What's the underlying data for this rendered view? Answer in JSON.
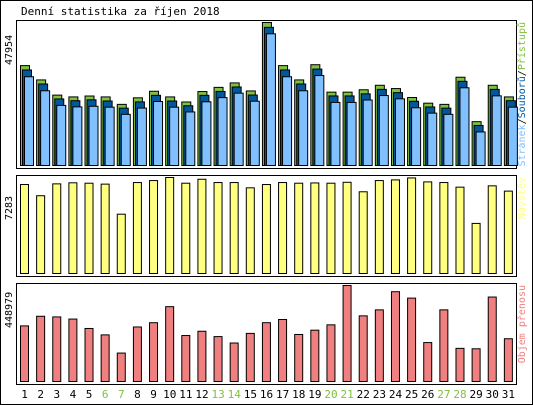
{
  "title": "Denní statistika za říjen 2018",
  "colors": {
    "border": "#000000",
    "panel_bg": "#ffffff",
    "hits": "#80c040",
    "files": "#00589c",
    "pages": "#80c0ff",
    "visits": "#ffff80",
    "volume": "#f08080",
    "weekend": "#80c040",
    "text": "#000000"
  },
  "chart_data": [
    {
      "type": "bar",
      "title": "Denní statistika za říjen 2018",
      "ymax_label": "47954",
      "ylim": [
        0,
        47954
      ],
      "legend_label": {
        "parts": [
          {
            "text": "Stránek",
            "color": "#80c0ff"
          },
          {
            "text": "/",
            "color": "#000000"
          },
          {
            "text": "Souborů",
            "color": "#00589c"
          },
          {
            "text": "/",
            "color": "#000000"
          },
          {
            "text": "Přístupů",
            "color": "#80c040"
          }
        ]
      },
      "categories": [
        "1",
        "2",
        "3",
        "4",
        "5",
        "6",
        "7",
        "8",
        "9",
        "10",
        "11",
        "12",
        "13",
        "14",
        "15",
        "16",
        "17",
        "18",
        "19",
        "20",
        "21",
        "22",
        "23",
        "24",
        "25",
        "26",
        "27",
        "28",
        "29",
        "30",
        "31"
      ],
      "series": [
        {
          "name": "Přístupů",
          "values": [
            33500,
            28700,
            23600,
            23000,
            23300,
            23000,
            20500,
            22700,
            24900,
            23000,
            21300,
            24800,
            26200,
            27700,
            25000,
            47954,
            33500,
            28700,
            33800,
            24600,
            24600,
            25400,
            26900,
            25800,
            22800,
            20900,
            20500,
            29600,
            14700,
            26900,
            23000
          ]
        },
        {
          "name": "Souborů",
          "values": [
            32700,
            28000,
            23000,
            22400,
            22700,
            22300,
            19900,
            22000,
            24200,
            22300,
            20700,
            24200,
            25500,
            27000,
            24300,
            47000,
            32700,
            28000,
            33000,
            24000,
            24000,
            24700,
            26200,
            25100,
            22200,
            20300,
            19900,
            28900,
            14100,
            26200,
            22400
          ]
        },
        {
          "name": "Stránek",
          "values": [
            31100,
            26400,
            21500,
            21000,
            21200,
            20900,
            18500,
            20600,
            22800,
            20900,
            19300,
            22700,
            24100,
            25600,
            22900,
            45500,
            31100,
            26400,
            31500,
            22500,
            22500,
            23300,
            24800,
            23700,
            20700,
            18900,
            18500,
            27400,
            12600,
            24700,
            20900
          ]
        }
      ]
    },
    {
      "type": "bar",
      "ymax_label": "7283",
      "ylim": [
        0,
        7283
      ],
      "legend_label": {
        "parts": [
          {
            "text": "Návštěv",
            "color": "#ffff80"
          }
        ]
      },
      "categories": [
        "1",
        "2",
        "3",
        "4",
        "5",
        "6",
        "7",
        "8",
        "9",
        "10",
        "11",
        "12",
        "13",
        "14",
        "15",
        "16",
        "17",
        "18",
        "19",
        "20",
        "21",
        "22",
        "23",
        "24",
        "25",
        "26",
        "27",
        "28",
        "29",
        "30",
        "31"
      ],
      "series": [
        {
          "name": "Návštěv",
          "values": [
            6750,
            5900,
            6800,
            6880,
            6850,
            6780,
            4500,
            6900,
            7050,
            7283,
            6850,
            7150,
            6900,
            6900,
            6500,
            6750,
            6900,
            6850,
            6870,
            6850,
            6920,
            6200,
            7050,
            7100,
            7250,
            6950,
            6900,
            6550,
            3800,
            6650,
            6250
          ]
        }
      ]
    },
    {
      "type": "bar",
      "ymax_label": "448979",
      "ylim": [
        0,
        448979
      ],
      "legend_label": {
        "parts": [
          {
            "text": "Objem přenosu",
            "color": "#f08080"
          }
        ]
      },
      "categories": [
        "1",
        "2",
        "3",
        "4",
        "5",
        "6",
        "7",
        "8",
        "9",
        "10",
        "11",
        "12",
        "13",
        "14",
        "15",
        "16",
        "17",
        "18",
        "19",
        "20",
        "21",
        "22",
        "23",
        "24",
        "25",
        "26",
        "27",
        "28",
        "29",
        "30",
        "31"
      ],
      "series": [
        {
          "name": "Objem přenosu",
          "values": [
            260000,
            305000,
            302000,
            292000,
            248000,
            218000,
            133000,
            255000,
            275000,
            350000,
            215000,
            235000,
            210000,
            180000,
            225000,
            275000,
            290000,
            220000,
            240000,
            265000,
            448979,
            307000,
            335000,
            420000,
            390000,
            182000,
            335000,
            155000,
            153000,
            395000,
            200000
          ]
        }
      ]
    }
  ],
  "weekend_days": [
    "6",
    "7",
    "13",
    "14",
    "20",
    "21",
    "27",
    "28"
  ]
}
